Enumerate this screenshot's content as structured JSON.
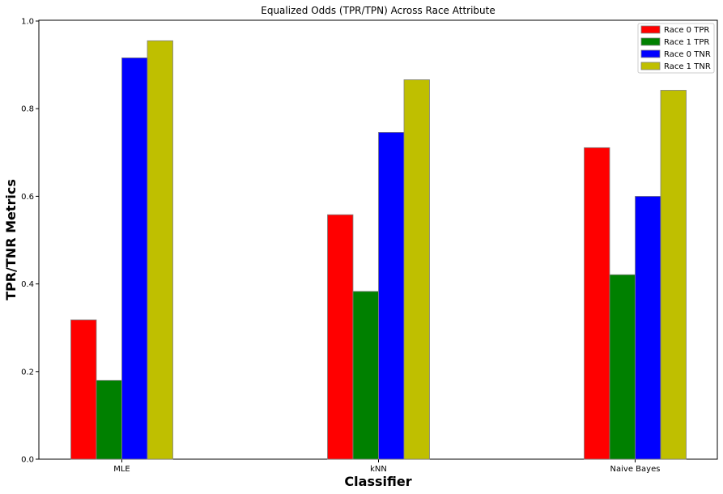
{
  "chart_data": {
    "type": "bar",
    "title": "Equalized Odds (TPR/TPN) Across Race Attribute",
    "xlabel": "Classifier",
    "ylabel": "TPR/TNR Metrics",
    "categories": [
      "MLE",
      "kNN",
      "Naive Bayes"
    ],
    "ylim": [
      0,
      1.0
    ],
    "yticks": [
      "0.0",
      "0.2",
      "0.4",
      "0.6",
      "0.8",
      "1.0"
    ],
    "grid": false,
    "legend_position": "top-right",
    "series": [
      {
        "name": "Race 0 TPR",
        "color": "#ff0000",
        "values": [
          0.318,
          0.558,
          0.711
        ]
      },
      {
        "name": "Race 1 TPR",
        "color": "#008000",
        "values": [
          0.18,
          0.383,
          0.421
        ]
      },
      {
        "name": "Race 0 TNR",
        "color": "#0000ff",
        "values": [
          0.916,
          0.746,
          0.6
        ]
      },
      {
        "name": "Race 1 TNR",
        "color": "#bfbf00",
        "values": [
          0.955,
          0.866,
          0.842
        ]
      }
    ]
  }
}
